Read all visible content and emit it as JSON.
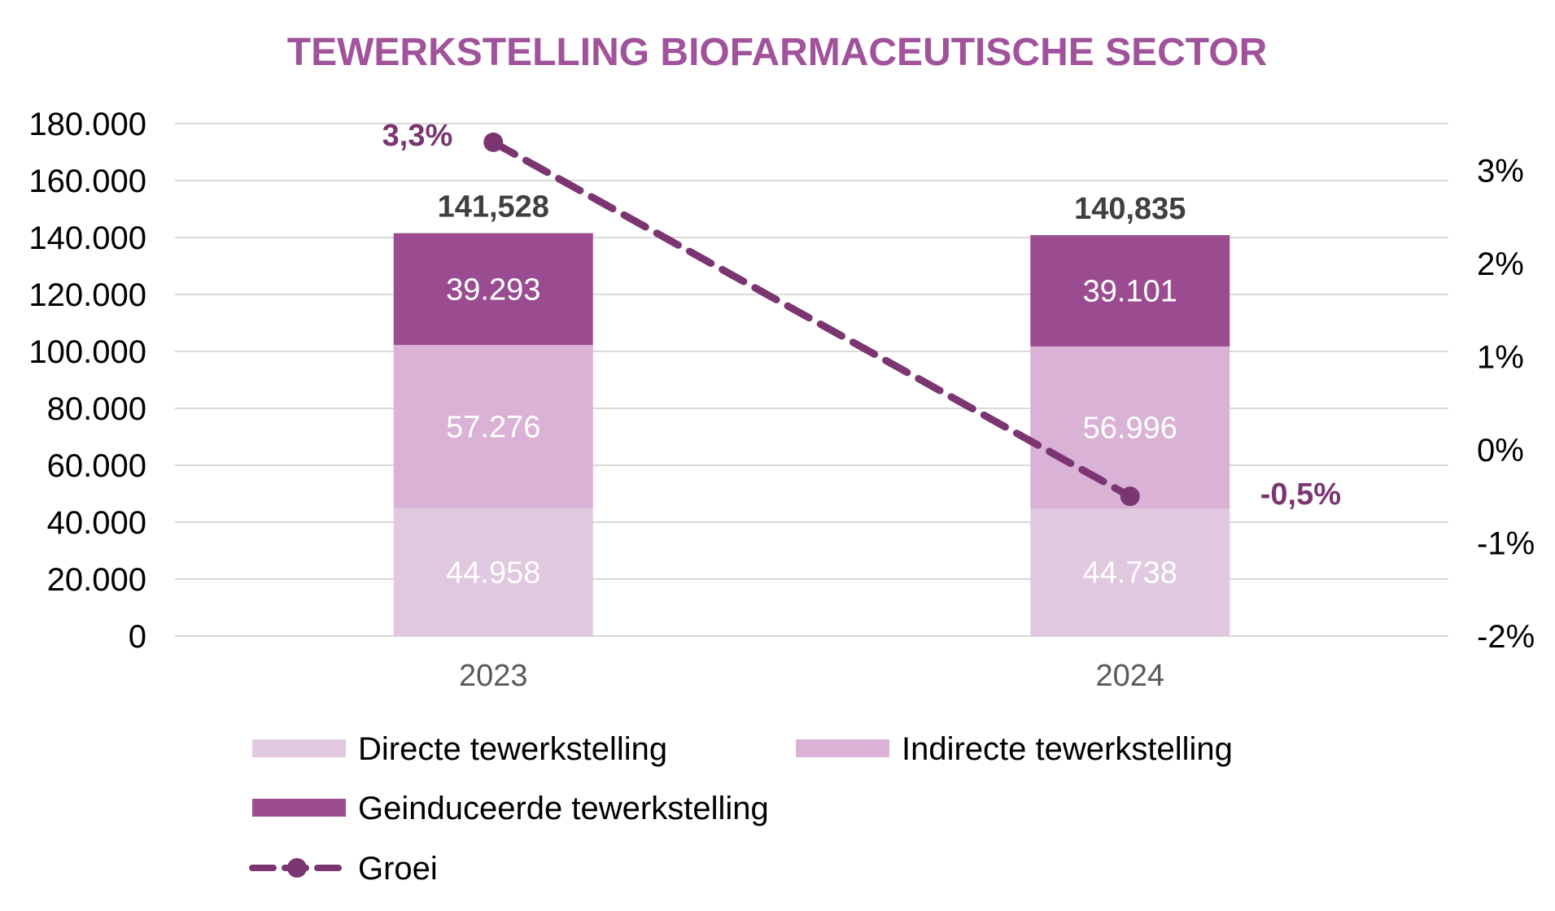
{
  "chart_data": {
    "type": "bar",
    "stacked": true,
    "title": "TEWERKSTELLING BIOFARMACEUTISCHE SECTOR",
    "categories": [
      "2023",
      "2024"
    ],
    "series": [
      {
        "name": "Directe tewerkstelling",
        "values": [
          44958,
          44738
        ],
        "labels": [
          "44.958",
          "44.738"
        ],
        "color": "#e0c8e0"
      },
      {
        "name": "Indirecte tewerkstelling",
        "values": [
          57276,
          56996
        ],
        "labels": [
          "57.276",
          "56.996"
        ],
        "color": "#d9b2d6"
      },
      {
        "name": "Geinduceerde tewerkstelling",
        "values": [
          39293,
          39101
        ],
        "labels": [
          "39.293",
          "39.101"
        ],
        "color": "#9b4c91"
      }
    ],
    "totals": {
      "values": [
        141528,
        140835
      ],
      "labels": [
        "141,528",
        "140,835"
      ]
    },
    "line_series": {
      "name": "Groei",
      "axis": "secondary",
      "values": [
        3.3,
        -0.5
      ],
      "labels": [
        "3,3%",
        "-0,5%"
      ],
      "color": "#7b3571",
      "style": "dashed"
    },
    "ylim": [
      0,
      180000
    ],
    "yticks": [
      "0",
      "20.000",
      "40.000",
      "60.000",
      "80.000",
      "100.000",
      "120.000",
      "140.000",
      "160.000",
      "180.000"
    ],
    "y2lim": [
      -2,
      3.5
    ],
    "y2ticks": [
      "-2%",
      "-1%",
      "0%",
      "1%",
      "2%",
      "3%"
    ],
    "grid": true,
    "legend_position": "bottom",
    "colors": {
      "title": "#a0529a",
      "grid": "#d9d9d9",
      "growth_label": "#7b3571"
    }
  }
}
